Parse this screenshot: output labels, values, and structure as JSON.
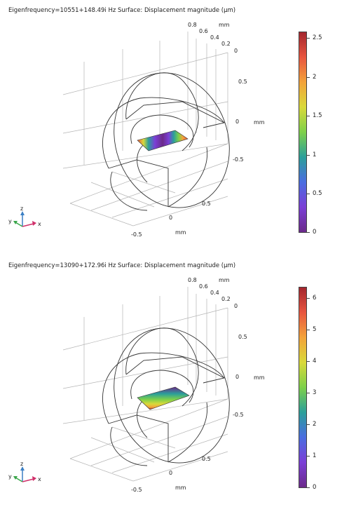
{
  "plots": [
    {
      "title": "Eigenfrequency=10551+148.49i Hz  Surface: Displacement magnitude (μm)",
      "colorbar": {
        "ticks": [
          "0",
          "0.5",
          "1",
          "1.5",
          "2",
          "2.5"
        ],
        "min": 0,
        "max": 2.6,
        "colormap": [
          "#6b2a8a",
          "#7b3fd6",
          "#4a6de0",
          "#2b9f9a",
          "#7dd04a",
          "#d9d93a",
          "#f3a33a",
          "#e8553f",
          "#a3262e"
        ]
      },
      "axes": {
        "top_ticks": [
          "0.8",
          "0.6",
          "0.4",
          "0.2",
          "0"
        ],
        "top_unit": "mm",
        "right_ticks": [
          "0.5",
          "0",
          "-0.5"
        ],
        "right_unit": "mm",
        "bottom_ticks": [
          "0.5",
          "0",
          "-0.5"
        ],
        "bottom_unit": "mm"
      }
    },
    {
      "title": "Eigenfrequency=13090+172.96i Hz  Surface: Displacement magnitude (μm)",
      "colorbar": {
        "ticks": [
          "0",
          "1",
          "2",
          "3",
          "4",
          "5",
          "6"
        ],
        "min": 0,
        "max": 6.4,
        "colormap": [
          "#6b2a8a",
          "#7b3fd6",
          "#4a6de0",
          "#2b9f9a",
          "#7dd04a",
          "#d9d93a",
          "#f3a33a",
          "#e8553f",
          "#a3262e"
        ]
      },
      "axes": {
        "top_ticks": [
          "0.8",
          "0.6",
          "0.4",
          "0.2",
          "0"
        ],
        "top_unit": "mm",
        "right_ticks": [
          "0.5",
          "0",
          "-0.5"
        ],
        "right_unit": "mm",
        "bottom_ticks": [
          "0.5",
          "0",
          "-0.5"
        ],
        "bottom_unit": "mm"
      }
    }
  ],
  "triad": {
    "x": "x",
    "y": "y",
    "z": "z"
  }
}
